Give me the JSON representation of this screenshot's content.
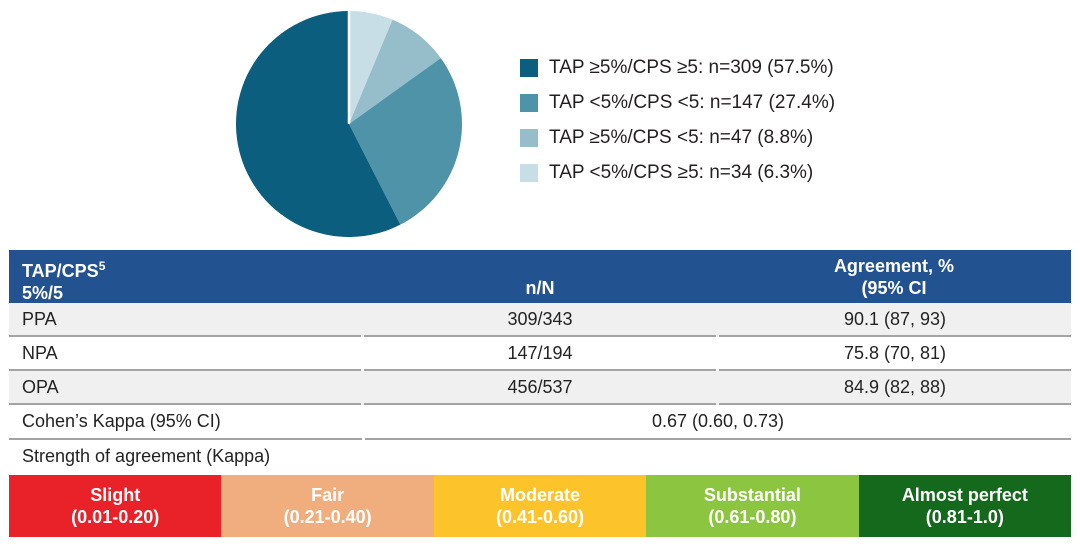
{
  "chart_data": {
    "type": "pie",
    "title": "",
    "start_angle": "top",
    "direction": "counterclockwise_in_listed_order",
    "legend_position": "right",
    "slices": [
      {
        "label": "TAP ≥5%/CPS ≥5: n=309 (57.5%)",
        "n": 309,
        "value": 57.5,
        "color": "#0b5e7d"
      },
      {
        "label": "TAP <5%/CPS <5: n=147 (27.4%)",
        "n": 147,
        "value": 27.4,
        "color": "#4f93a8"
      },
      {
        "label": "TAP ≥5%/CPS <5: n=47 (8.8%)",
        "n": 47,
        "value": 8.8,
        "color": "#96bdca"
      },
      {
        "label": "TAP <5%/CPS ≥5: n=34 (6.3%)",
        "n": 34,
        "value": 6.3,
        "color": "#c8dee6"
      }
    ]
  },
  "table": {
    "header": {
      "col1_title": "TAP/CPS",
      "col1_sup": "5",
      "col1_sub": "5%/5",
      "col2": "n/N",
      "col3_line1": "Agreement, %",
      "col3_line2": "(95% CI"
    },
    "rows": [
      {
        "label": "PPA",
        "n_N": "309/343",
        "agreement": "90.1 (87, 93)"
      },
      {
        "label": "NPA",
        "n_N": "147/194",
        "agreement": "75.8 (70, 81)"
      },
      {
        "label": "OPA",
        "n_N": "456/537",
        "agreement": "84.9 (82, 88)"
      }
    ],
    "kappa": {
      "label": "Cohen’s Kappa (95% CI)",
      "value": "0.67 (0.60, 0.73)"
    },
    "strength_label": "Strength of agreement (Kappa)"
  },
  "scale": {
    "segments": [
      {
        "name": "Slight",
        "range": "(0.01-0.20)",
        "color": "#e92229"
      },
      {
        "name": "Fair",
        "range": "(0.21-0.40)",
        "color": "#f0ad7e"
      },
      {
        "name": "Moderate",
        "range": "(0.41-0.60)",
        "color": "#fcc32a"
      },
      {
        "name": "Substantial",
        "range": "(0.61-0.80)",
        "color": "#8cc540"
      },
      {
        "name": "Almost perfect",
        "range": "(0.81-1.0)",
        "color": "#15691c"
      }
    ]
  },
  "colors": {
    "header_bg": "#235291",
    "alt_row_bg": "#f0f0f1",
    "row_border": "#a3a3a5",
    "text": "#232323"
  }
}
